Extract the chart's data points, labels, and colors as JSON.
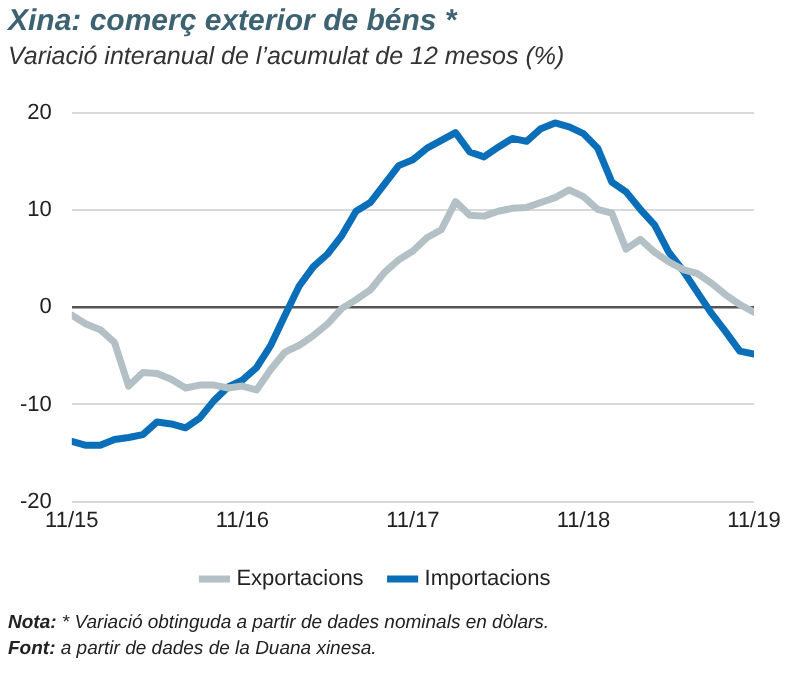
{
  "chart_data": {
    "type": "line",
    "title": "Xina: comerç exterior de béns *",
    "subtitle": "Variació interanual de l’acumulat de 12 mesos (%)",
    "x": [
      "2015-11",
      "2015-12",
      "2016-01",
      "2016-02",
      "2016-03",
      "2016-04",
      "2016-05",
      "2016-06",
      "2016-07",
      "2016-08",
      "2016-09",
      "2016-10",
      "2016-11",
      "2016-12",
      "2017-01",
      "2017-02",
      "2017-03",
      "2017-04",
      "2017-05",
      "2017-06",
      "2017-07",
      "2017-08",
      "2017-09",
      "2017-10",
      "2017-11",
      "2017-12",
      "2018-01",
      "2018-02",
      "2018-03",
      "2018-04",
      "2018-05",
      "2018-06",
      "2018-07",
      "2018-08",
      "2018-09",
      "2018-10",
      "2018-11",
      "2018-12",
      "2019-01",
      "2019-02",
      "2019-03",
      "2019-04",
      "2019-05",
      "2019-06",
      "2019-07",
      "2019-08",
      "2019-09",
      "2019-10",
      "2019-11"
    ],
    "series": [
      {
        "name": "Exportacions",
        "color": "#b3c0c5",
        "values": [
          -0.8,
          -1.7,
          -2.3,
          -3.6,
          -8.1,
          -6.7,
          -6.8,
          -7.4,
          -8.3,
          -8,
          -8,
          -8.3,
          -8.1,
          -8.5,
          -6.4,
          -4.6,
          -3.9,
          -2.9,
          -1.7,
          -0.1,
          0.8,
          1.8,
          3.6,
          4.9,
          5.8,
          7.2,
          8,
          10.9,
          9.5,
          9.4,
          9.9,
          10.2,
          10.3,
          10.8,
          11.3,
          12.1,
          11.4,
          10.1,
          9.7,
          6,
          7,
          5.7,
          4.7,
          3.9,
          3.5,
          2.5,
          1.3,
          0.3,
          -0.5
        ]
      },
      {
        "name": "Importacions",
        "color": "#0a6fb8",
        "values": [
          -13.8,
          -14.2,
          -14.2,
          -13.6,
          -13.4,
          -13.1,
          -11.8,
          -12,
          -12.4,
          -11.4,
          -9.6,
          -8.2,
          -7.5,
          -6.2,
          -3.9,
          -0.8,
          2.2,
          4.2,
          5.5,
          7.4,
          9.9,
          10.8,
          12.7,
          14.6,
          15.2,
          16.4,
          17.2,
          18,
          16,
          15.5,
          16.5,
          17.4,
          17.1,
          18.4,
          19,
          18.6,
          17.9,
          16.4,
          12.9,
          11.9,
          10.1,
          8.5,
          5.7,
          3.8,
          1.6,
          -0.6,
          -2.5,
          -4.5,
          -4.8
        ]
      }
    ],
    "xlim": [
      "2015-11",
      "2019-11"
    ],
    "xticks": [
      {
        "value": "2015-11",
        "label": "11/15"
      },
      {
        "value": "2016-11",
        "label": "11/16"
      },
      {
        "value": "2017-11",
        "label": "11/17"
      },
      {
        "value": "2018-11",
        "label": "11/18"
      },
      {
        "value": "2019-11",
        "label": "11/19"
      }
    ],
    "ylim": [
      -20,
      20
    ],
    "yticks": [
      -20,
      -10,
      0,
      10,
      20
    ],
    "grid": "y",
    "legend": "bottom",
    "marker": "none",
    "line_style": "solid",
    "annotations": [
      "Nota: * Variació obtinguda a partir de dades nominals en dòlars.",
      "Font: a partir de dades de la Duana xinesa."
    ]
  }
}
